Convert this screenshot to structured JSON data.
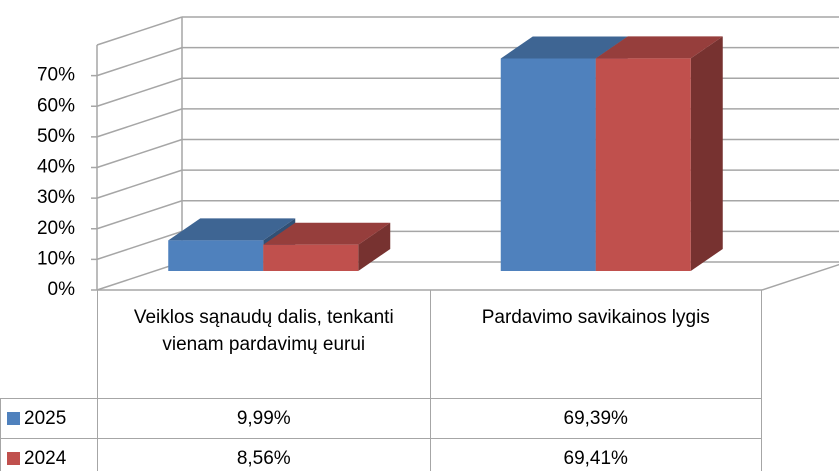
{
  "chart_data": {
    "type": "bar3d",
    "categories": [
      "Veiklos sąnaudų dalis, tenkanti vienam pardavimų eurui",
      "Pardavimo savikainos lygis"
    ],
    "series": [
      {
        "name": "2025",
        "color": "#4f81bd",
        "values": [
          9.99,
          69.39
        ],
        "value_labels": [
          "9,99%",
          "69,39%"
        ]
      },
      {
        "name": "2024",
        "color": "#c0504d",
        "values": [
          8.56,
          69.41
        ],
        "value_labels": [
          "8,56%",
          "69,41%"
        ]
      }
    ],
    "ylim": [
      0,
      80
    ],
    "yticks": [
      {
        "value": 0,
        "label": "0%"
      },
      {
        "value": 10,
        "label": "10%"
      },
      {
        "value": 20,
        "label": "20%"
      },
      {
        "value": 30,
        "label": "30%"
      },
      {
        "value": 40,
        "label": "40%"
      },
      {
        "value": 50,
        "label": "50%"
      },
      {
        "value": 60,
        "label": "60%"
      },
      {
        "value": 70,
        "label": "70%"
      }
    ],
    "grid": true,
    "data_table": true
  }
}
